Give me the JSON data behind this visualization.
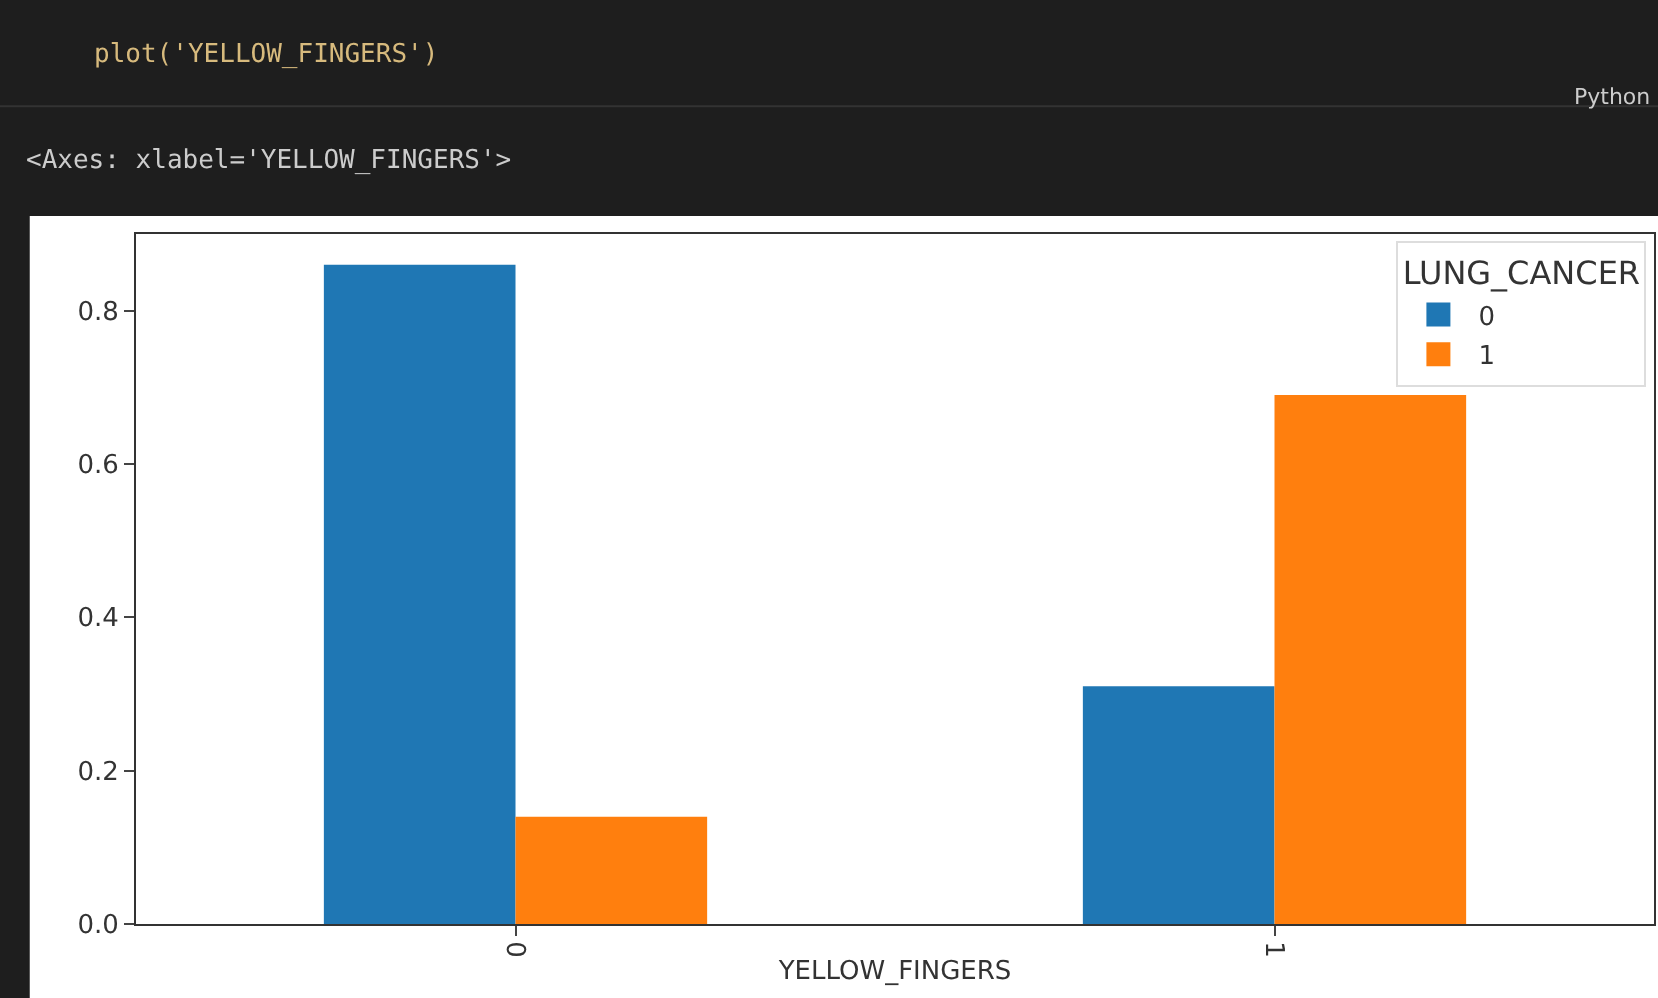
{
  "chart_data": {
    "type": "bar",
    "xlabel": "YELLOW_FINGERS",
    "legend_title": "LUNG_CANCER",
    "categories": [
      "0",
      "1"
    ],
    "series": [
      {
        "name": "0",
        "color": "#1f77b4",
        "values": [
          0.86,
          0.31
        ]
      },
      {
        "name": "1",
        "color": "#ff7f0e",
        "values": [
          0.14,
          0.69
        ]
      }
    ],
    "ylim": [
      0,
      0.9
    ],
    "yticks": [
      {
        "value": 0,
        "label": "0.0"
      },
      {
        "value": 0.2,
        "label": "0.2"
      },
      {
        "value": 0.4,
        "label": "0.4"
      },
      {
        "value": 0.6,
        "label": "0.6"
      },
      {
        "value": 0.8,
        "label": "0.8"
      }
    ],
    "legend": "top right",
    "annotations": [
      "plot('YELLOW_FINGERS')",
      "<Axes: xlabel='YELLOW_FINGERS'>",
      "Python"
    ]
  }
}
